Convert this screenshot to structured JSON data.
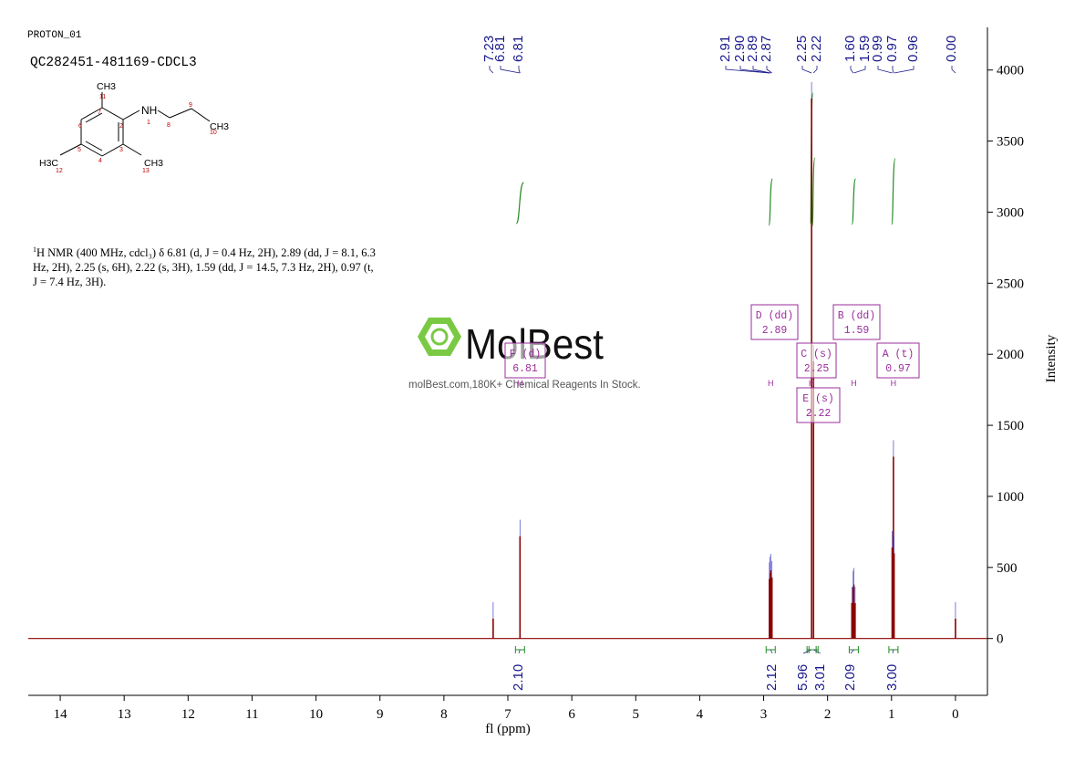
{
  "header": {
    "experiment": "PROTON_01",
    "sample": "QC282451-481169-CDCL3"
  },
  "description": {
    "sup": "1",
    "text": "H NMR (400 MHz, cdcl₃) δ 6.81 (d, J = 0.4 Hz, 2H), 2.89 (dd, J = 8.1, 6.3 Hz, 2H), 2.25 (s, 6H), 2.22 (s, 3H), 1.59 (dd, J = 14.5, 7.3 Hz, 2H), 0.97 (t, J = 7.4 Hz, 3H)."
  },
  "structure": {
    "labels": [
      "CH3",
      "NH",
      "1",
      "11",
      "7",
      "2",
      "6",
      "8",
      "9",
      "10",
      "5",
      "3",
      "4",
      "12",
      "13",
      "H3C",
      "CH3",
      "CH3"
    ]
  },
  "watermark": {
    "brand": "MolBest",
    "tagline": "molBest.com,180K+ Chemical Reagents In Stock."
  },
  "colors": {
    "spectrum": "#8b0000",
    "integral": "#228b22",
    "peak_label": "#1a1a8c",
    "multiplet_box": "#9b2d9b",
    "axis": "#000000"
  },
  "chart_data": {
    "type": "line",
    "xlabel": "fl (ppm)",
    "ylabel": "Intensity",
    "xlim": [
      14.5,
      -0.5
    ],
    "ylim": [
      -400,
      4300
    ],
    "x_ticks": [
      14,
      13,
      12,
      11,
      10,
      9,
      8,
      7,
      6,
      5,
      4,
      3,
      2,
      1,
      0
    ],
    "y_ticks": [
      0,
      500,
      1000,
      1500,
      2000,
      2500,
      3000,
      3500,
      4000
    ],
    "peaks": [
      {
        "ppm": 7.23,
        "height": 140
      },
      {
        "ppm": 6.81,
        "height": 720
      },
      {
        "ppm": 2.91,
        "height": 420
      },
      {
        "ppm": 2.9,
        "height": 460
      },
      {
        "ppm": 2.89,
        "height": 480
      },
      {
        "ppm": 2.87,
        "height": 430
      },
      {
        "ppm": 2.25,
        "height": 3800
      },
      {
        "ppm": 2.22,
        "height": 1950
      },
      {
        "ppm": 1.62,
        "height": 250
      },
      {
        "ppm": 1.6,
        "height": 360
      },
      {
        "ppm": 1.59,
        "height": 380
      },
      {
        "ppm": 1.57,
        "height": 250
      },
      {
        "ppm": 0.99,
        "height": 640
      },
      {
        "ppm": 0.97,
        "height": 1280
      },
      {
        "ppm": 0.96,
        "height": 600
      },
      {
        "ppm": 0.0,
        "height": 140
      }
    ],
    "peak_labels": [
      {
        "group": [
          "7.23",
          "6.81",
          "6.81"
        ]
      },
      {
        "group": [
          "2.91",
          "2.90",
          "2.89",
          "2.87",
          "2.25",
          "2.22"
        ]
      },
      {
        "group": [
          "1.60",
          "1.59",
          "0.99",
          "0.97",
          "0.96"
        ]
      },
      {
        "group": [
          "0.00"
        ]
      }
    ],
    "integrals": [
      {
        "ppm": 6.81,
        "value": "2.10"
      },
      {
        "ppm": 2.89,
        "value": "2.12"
      },
      {
        "ppm": 2.25,
        "value": "5.96"
      },
      {
        "ppm": 2.22,
        "value": "3.01"
      },
      {
        "ppm": 1.59,
        "value": "2.09"
      },
      {
        "ppm": 0.97,
        "value": "3.00"
      }
    ],
    "multiplets": [
      {
        "letter": "D",
        "mult": "dd",
        "shift": "2.89"
      },
      {
        "letter": "B",
        "mult": "dd",
        "shift": "1.59"
      },
      {
        "letter": "C",
        "mult": "s",
        "shift": "2.25"
      },
      {
        "letter": "A",
        "mult": "t",
        "shift": "0.97"
      },
      {
        "letter": "E",
        "mult": "s",
        "shift": "2.22"
      },
      {
        "letter": "F",
        "mult": "d",
        "shift": "6.81"
      }
    ]
  }
}
